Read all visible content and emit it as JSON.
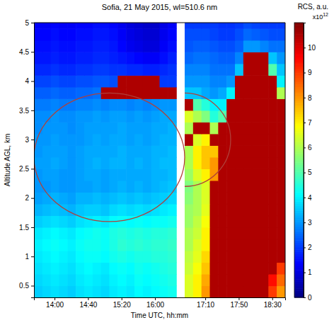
{
  "chart_data": {
    "type": "heatmap",
    "title": "Sofia, 21 May 2015, wl=510.6 nm",
    "x_label": "Time UTC, hh:mm",
    "y_label": "Altitude AGL, km",
    "categories": [
      null,
      null,
      "14:00",
      null,
      null,
      null,
      "14:40",
      null,
      null,
      null,
      "15:20",
      null,
      null,
      null,
      "16:00",
      null,
      null,
      null,
      null,
      null,
      "17:10",
      null,
      null,
      null,
      "17:50",
      null,
      null,
      null,
      "18:30",
      null
    ],
    "ylim": [
      0.3,
      5
    ],
    "yticks": [
      0.5,
      1,
      1.5,
      2,
      2.5,
      3,
      3.5,
      4,
      4.5,
      5
    ],
    "y_bins": [
      0.3,
      0.5,
      0.7,
      0.9,
      1.1,
      1.3,
      1.5,
      1.7,
      1.9,
      2.1,
      2.3,
      2.5,
      2.7,
      2.9,
      3.1,
      3.3,
      3.5,
      3.7,
      3.9,
      4.1,
      4.3,
      4.5,
      4.7,
      4.9,
      5.0
    ],
    "cells": [
      [
        3.6,
        3.7,
        3.8,
        3.7,
        3.6,
        3.8,
        3.9,
        3.8,
        3.7,
        3.9,
        4.0,
        3.9,
        4.1,
        4.0,
        4.1,
        4.2,
        4.3,
        null,
        6.5,
        7,
        8,
        10.5,
        10.5,
        10.5,
        10.5,
        10.5,
        10.5,
        10.5,
        9,
        8
      ],
      [
        3.7,
        3.8,
        3.9,
        3.8,
        3.7,
        3.9,
        4.0,
        3.9,
        3.8,
        4.0,
        4.1,
        4.0,
        4.2,
        4.1,
        4.2,
        4.3,
        4.4,
        null,
        6.5,
        7,
        7.8,
        10.5,
        10.5,
        10.5,
        10.5,
        10.5,
        10.5,
        10.5,
        9.5,
        8.5
      ],
      [
        3.8,
        3.9,
        4.0,
        3.9,
        3.8,
        4.0,
        4.1,
        4.0,
        3.9,
        4.1,
        4.2,
        4.1,
        4.3,
        4.2,
        4.3,
        4.4,
        4.5,
        null,
        6.3,
        6.8,
        7.5,
        10.5,
        10.5,
        10.5,
        10.5,
        10.5,
        10.5,
        10.5,
        10.5,
        9
      ],
      [
        3.9,
        4.0,
        4.1,
        4.0,
        3.9,
        4.1,
        4.2,
        4.2,
        4.1,
        4.3,
        4.4,
        4.3,
        4.4,
        4.4,
        4.5,
        4.5,
        4.6,
        null,
        6.2,
        6.6,
        7.3,
        10.5,
        10.5,
        10.5,
        10.5,
        10.5,
        10.5,
        10.5,
        10.5,
        10.5
      ],
      [
        4.0,
        4.1,
        4.2,
        4.1,
        4.0,
        4.2,
        4.3,
        4.3,
        4.2,
        4.4,
        4.6,
        4.5,
        4.6,
        4.5,
        4.6,
        4.6,
        4.7,
        null,
        6,
        6.5,
        7,
        10.5,
        10.5,
        10.5,
        10.5,
        10.5,
        10.5,
        10.5,
        10.5,
        10.5
      ],
      [
        3.9,
        4.0,
        4.1,
        4.0,
        3.9,
        4.1,
        4.2,
        4.3,
        4.2,
        4.4,
        4.5,
        4.4,
        4.5,
        4.4,
        4.5,
        4.5,
        4.6,
        null,
        6,
        6.3,
        7,
        10.5,
        10.5,
        10.5,
        10.5,
        10.5,
        10.5,
        10.5,
        10.5,
        10.5
      ],
      [
        3.6,
        3.7,
        3.8,
        3.7,
        3.6,
        3.8,
        3.9,
        4.0,
        3.9,
        4.1,
        4.2,
        4.1,
        4.2,
        4.1,
        4.2,
        4.2,
        4.3,
        null,
        5.8,
        6.2,
        6.8,
        10.5,
        10.5,
        10.5,
        10.5,
        10.5,
        10.5,
        10.5,
        10.5,
        10.5
      ],
      [
        3.3,
        3.4,
        3.5,
        3.4,
        3.3,
        3.5,
        3.6,
        3.6,
        3.5,
        3.7,
        3.8,
        3.7,
        3.8,
        3.7,
        3.8,
        3.9,
        4.0,
        null,
        5.8,
        6,
        6.6,
        10.5,
        10.5,
        10.5,
        10.5,
        10.5,
        10.5,
        10.5,
        10.5,
        10.5
      ],
      [
        3.1,
        3.2,
        3.3,
        3.2,
        3.1,
        3.3,
        3.3,
        3.4,
        3.3,
        3.4,
        3.5,
        3.4,
        3.5,
        3.4,
        3.5,
        3.6,
        3.7,
        null,
        5.6,
        6,
        6.5,
        10.5,
        10.5,
        10.5,
        10.5,
        10.5,
        10.5,
        10.5,
        10.5,
        10.5
      ],
      [
        3.0,
        3.0,
        3.1,
        3.0,
        3.0,
        3.1,
        3.1,
        3.2,
        3.1,
        3.2,
        3.3,
        3.2,
        3.3,
        3.2,
        3.3,
        3.4,
        3.5,
        null,
        5.5,
        6,
        6.5,
        10.5,
        10.5,
        10.5,
        10.5,
        10.5,
        10.5,
        10.5,
        10.5,
        10.5
      ],
      [
        3.0,
        3.1,
        3.1,
        3.0,
        3.0,
        3.1,
        3.2,
        3.2,
        3.1,
        3.2,
        3.2,
        3.2,
        3.2,
        3.2,
        3.3,
        3.3,
        3.4,
        null,
        5.8,
        6.5,
        7,
        8,
        10.5,
        10.5,
        10.5,
        10.5,
        10.5,
        10.5,
        10.5,
        10.5
      ],
      [
        3.1,
        3.1,
        3.2,
        3.1,
        3.0,
        3.1,
        3.2,
        3.3,
        3.2,
        3.3,
        3.3,
        3.2,
        3.3,
        3.2,
        3.3,
        3.4,
        3.4,
        null,
        6,
        7,
        7.5,
        8,
        10.5,
        10.5,
        10.5,
        10.5,
        10.5,
        10.5,
        10.5,
        10.5
      ],
      [
        3.0,
        3.1,
        3.1,
        3.1,
        3.0,
        3.1,
        3.2,
        3.2,
        3.2,
        3.2,
        3.3,
        3.2,
        3.2,
        3.2,
        3.3,
        3.3,
        3.4,
        null,
        6,
        7,
        7.5,
        7.5,
        10.5,
        10.5,
        10.5,
        10.5,
        10.5,
        10.5,
        10.5,
        10.5
      ],
      [
        3.0,
        3.0,
        3.1,
        3.0,
        3.0,
        3.0,
        3.1,
        3.2,
        3.1,
        3.2,
        3.2,
        3.1,
        3.2,
        3.1,
        3.2,
        3.3,
        3.3,
        null,
        10.5,
        6.5,
        7,
        10.5,
        10.5,
        10.5,
        10.5,
        10.5,
        10.5,
        10.5,
        10.5,
        10.5
      ],
      [
        2.9,
        3.0,
        3.0,
        3.0,
        2.9,
        3.0,
        3.1,
        3.1,
        3.1,
        3.1,
        3.2,
        3.1,
        3.1,
        3.1,
        3.2,
        3.2,
        3.3,
        null,
        6,
        10.5,
        10.5,
        6,
        10.5,
        10.5,
        10.5,
        10.5,
        10.5,
        10.5,
        10.5,
        10.5
      ],
      [
        2.9,
        2.9,
        3.0,
        2.9,
        2.9,
        3.0,
        3.0,
        3.1,
        3.0,
        3.1,
        3.1,
        3.0,
        3.1,
        3.0,
        3.1,
        3.2,
        3.2,
        null,
        6.5,
        6,
        5.5,
        4.5,
        5,
        10.5,
        10.5,
        10.5,
        10.5,
        10.5,
        10.5,
        10.5
      ],
      [
        2.7,
        2.7,
        2.8,
        2.7,
        2.7,
        2.8,
        2.8,
        2.9,
        2.8,
        2.9,
        2.9,
        2.8,
        2.9,
        2.8,
        2.9,
        3.0,
        3.0,
        null,
        10.5,
        5,
        4.5,
        4,
        4,
        10.5,
        10.5,
        10.5,
        10.5,
        10.5,
        10.5,
        10.5
      ],
      [
        2.4,
        2.4,
        2.5,
        2.4,
        2.4,
        2.5,
        2.5,
        2.6,
        10.5,
        10.5,
        10.5,
        10.5,
        10.5,
        10.5,
        10.5,
        10.5,
        10.5,
        null,
        3.5,
        3.5,
        3.2,
        3,
        3.2,
        4,
        10.5,
        10.5,
        10.5,
        10.5,
        10.5,
        6
      ],
      [
        2.1,
        2.1,
        2.2,
        2.1,
        2.1,
        2.2,
        2.2,
        2.3,
        2.3,
        2.2,
        10.5,
        10.5,
        10.5,
        10.5,
        10.5,
        2.0,
        2.0,
        null,
        3,
        3,
        3,
        2.8,
        2.8,
        3,
        10.5,
        10.5,
        10.5,
        10.5,
        10.5,
        4
      ],
      [
        1.8,
        1.8,
        1.9,
        1.8,
        1.8,
        1.9,
        1.9,
        2.0,
        2.0,
        1.9,
        1.9,
        1.8,
        1.8,
        1.7,
        1.7,
        1.8,
        1.9,
        null,
        2.8,
        2.8,
        2.8,
        2.6,
        2.6,
        2.6,
        3.5,
        10.5,
        10.5,
        10.5,
        5,
        3.5
      ],
      [
        1.6,
        1.6,
        1.7,
        1.6,
        1.6,
        1.7,
        1.7,
        1.8,
        1.8,
        1.7,
        1.6,
        1.5,
        1.4,
        1.3,
        1.3,
        1.5,
        1.7,
        null,
        2.5,
        2.6,
        2.6,
        2.5,
        2.4,
        2.4,
        2.8,
        10.5,
        10.5,
        10.5,
        3.5,
        3
      ],
      [
        1.5,
        1.5,
        1.6,
        1.5,
        1.5,
        1.6,
        1.6,
        1.7,
        1.7,
        1.6,
        1.4,
        1.2,
        1.1,
        1.0,
        1.0,
        1.3,
        1.5,
        null,
        2.3,
        2.4,
        2.4,
        2.3,
        2.2,
        2.2,
        2.4,
        3,
        3,
        2.8,
        2.6,
        2.6
      ],
      [
        1.4,
        1.4,
        1.5,
        1.4,
        1.4,
        1.5,
        1.5,
        1.6,
        1.6,
        1.5,
        1.3,
        1.1,
        1.0,
        0.9,
        0.9,
        1.2,
        1.4,
        null,
        2.2,
        2.2,
        2.2,
        2.1,
        2,
        2,
        2.2,
        2.5,
        2.4,
        2.3,
        2.2,
        2.2
      ],
      [
        1.3,
        1.3,
        1.4,
        1.3,
        1.3,
        1.4,
        1.4,
        1.5,
        1.5,
        1.4,
        1.2,
        1.0,
        0.9,
        0.8,
        0.8,
        1.1,
        1.3,
        null,
        2,
        2,
        2,
        2,
        1.9,
        1.9,
        2,
        2.2,
        2.1,
        2,
        2,
        2
      ]
    ],
    "colorbar": {
      "label": "RCS, a.u.",
      "scale_text": "x10",
      "scale_power": "12",
      "range": [
        0,
        11
      ],
      "ticks": [
        0,
        1,
        2,
        3,
        4,
        5,
        6,
        7,
        8,
        9,
        10
      ]
    }
  }
}
